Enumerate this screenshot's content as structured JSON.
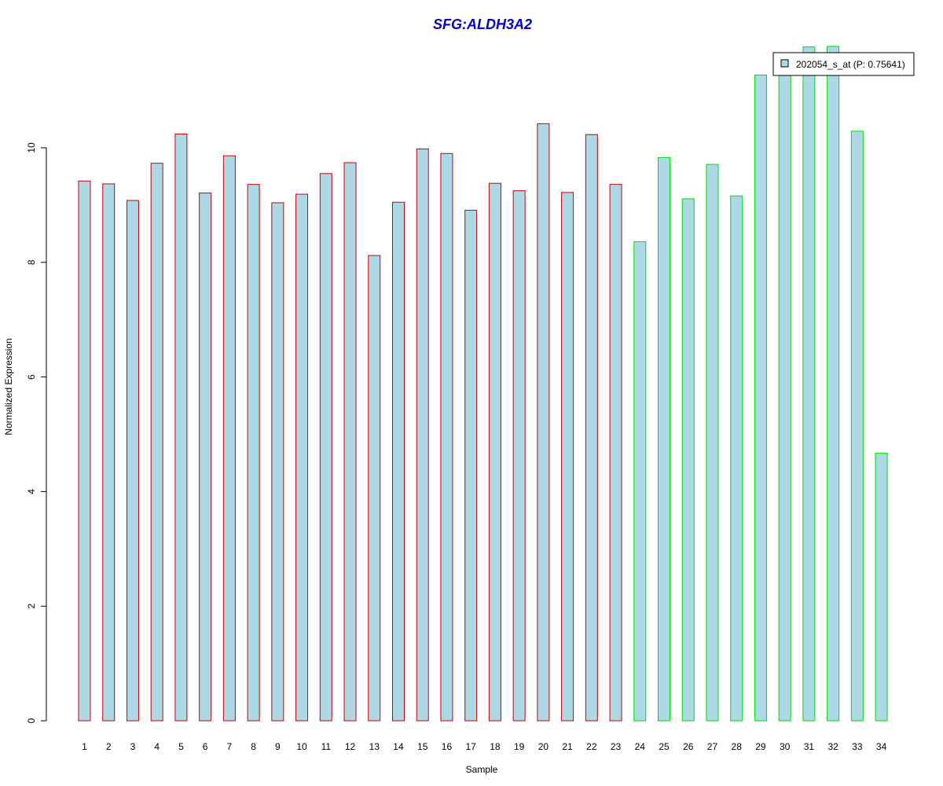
{
  "chart_data": {
    "type": "bar",
    "title": "SFG:ALDH3A2",
    "xlabel": "Sample",
    "ylabel": "Normalized Expression",
    "ylim": [
      0,
      11.75
    ],
    "yticks": [
      0,
      2,
      4,
      6,
      8,
      10
    ],
    "categories": [
      "1",
      "2",
      "3",
      "4",
      "5",
      "6",
      "7",
      "8",
      "9",
      "10",
      "11",
      "12",
      "13",
      "14",
      "15",
      "16",
      "17",
      "18",
      "19",
      "20",
      "21",
      "22",
      "23",
      "24",
      "25",
      "26",
      "27",
      "28",
      "29",
      "30",
      "31",
      "32",
      "33",
      "34"
    ],
    "series": [
      {
        "name": "202054_s_at (P: 0.75641)",
        "values": [
          9.42,
          9.37,
          9.08,
          9.73,
          10.24,
          9.21,
          9.86,
          9.36,
          9.04,
          9.19,
          9.55,
          9.74,
          8.12,
          9.05,
          9.98,
          9.9,
          8.91,
          9.38,
          9.25,
          10.42,
          9.22,
          10.23,
          9.36,
          8.36,
          9.83,
          9.11,
          9.71,
          9.16,
          11.27,
          11.33,
          11.76,
          11.77,
          10.29,
          4.67
        ],
        "fill": "#add8e6",
        "group_border": [
          "#cc0000",
          "#cc0000",
          "#cc0000",
          "#cc0000",
          "#cc0000",
          "#cc0000",
          "#cc0000",
          "#cc0000",
          "#cc0000",
          "#cc0000",
          "#cc0000",
          "#cc0000",
          "#cc0000",
          "#cc0000",
          "#cc0000",
          "#cc0000",
          "#cc0000",
          "#cc0000",
          "#cc0000",
          "#cc0000",
          "#cc0000",
          "#cc0000",
          "#cc0000",
          "#00dd00",
          "#00dd00",
          "#00dd00",
          "#00dd00",
          "#00dd00",
          "#00dd00",
          "#00dd00",
          "#00dd00",
          "#00dd00",
          "#00dd00",
          "#00dd00"
        ]
      }
    ],
    "legend_position": "top-right",
    "grid": false
  },
  "colors": {
    "title": "#0000cc",
    "bar_fill": "#add8e6",
    "group1_border": "#cc0000",
    "group2_border": "#00dd00"
  }
}
